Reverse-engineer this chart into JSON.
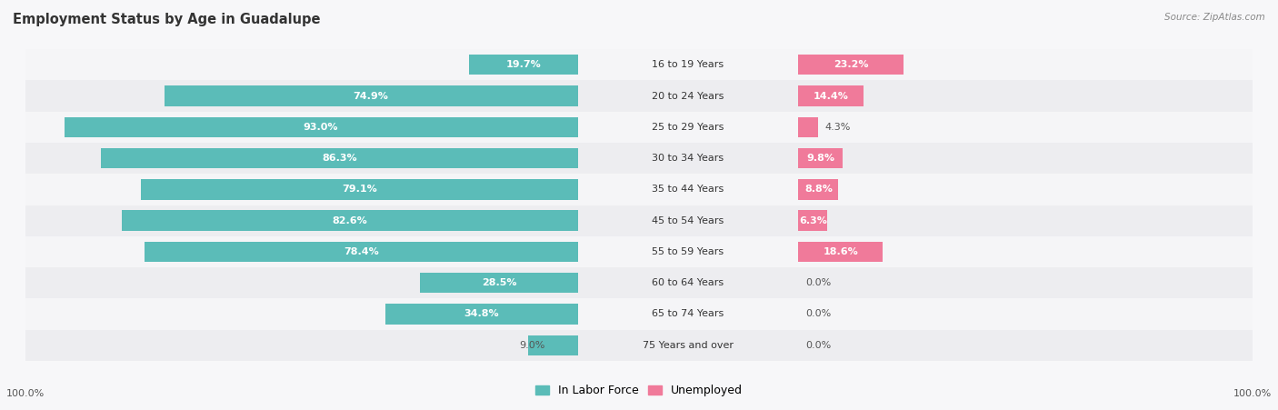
{
  "title": "Employment Status by Age in Guadalupe",
  "source": "Source: ZipAtlas.com",
  "categories": [
    "16 to 19 Years",
    "20 to 24 Years",
    "25 to 29 Years",
    "30 to 34 Years",
    "35 to 44 Years",
    "45 to 54 Years",
    "55 to 59 Years",
    "60 to 64 Years",
    "65 to 74 Years",
    "75 Years and over"
  ],
  "labor_force": [
    19.7,
    74.9,
    93.0,
    86.3,
    79.1,
    82.6,
    78.4,
    28.5,
    34.8,
    9.0
  ],
  "unemployed": [
    23.2,
    14.4,
    4.3,
    9.8,
    8.8,
    6.3,
    18.6,
    0.0,
    0.0,
    0.0
  ],
  "labor_force_color": "#5bbcb8",
  "unemployed_color": "#f07a9a",
  "row_bg_light": "#f5f5f7",
  "row_bg_dark": "#ededf0",
  "title_fontsize": 10.5,
  "label_fontsize": 8.0,
  "axis_label_fontsize": 8,
  "legend_fontsize": 9,
  "inside_label_threshold_lf": 12,
  "inside_label_threshold_un": 6
}
